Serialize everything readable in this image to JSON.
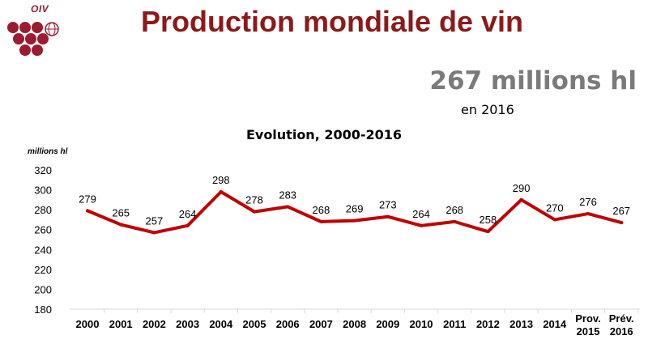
{
  "header": {
    "logo_text": "OIV",
    "title": "Production mondiale de vin"
  },
  "headline": {
    "value": "267 millions hl",
    "subtitle": "en 2016"
  },
  "colors": {
    "title": "#8b1a1a",
    "line": "#c00000",
    "logo": "#9b1b30",
    "axis": "#d9d9d9",
    "headline": "#7a7a7a"
  },
  "chart_data": {
    "type": "line",
    "title": "Evolution, 2000-2016",
    "ylabel": "millions hl",
    "xlabel": "",
    "ylim": [
      180,
      320
    ],
    "yticks": [
      180,
      200,
      220,
      240,
      260,
      280,
      300,
      320
    ],
    "grid": false,
    "categories": [
      [
        "2000"
      ],
      [
        "2001"
      ],
      [
        "2002"
      ],
      [
        "2003"
      ],
      [
        "2004"
      ],
      [
        "2005"
      ],
      [
        "2006"
      ],
      [
        "2007"
      ],
      [
        "2008"
      ],
      [
        "2009"
      ],
      [
        "2010"
      ],
      [
        "2011"
      ],
      [
        "2012"
      ],
      [
        "2013"
      ],
      [
        "2014"
      ],
      [
        "Prov.",
        "2015"
      ],
      [
        "Prév.",
        "2016"
      ]
    ],
    "series": [
      {
        "values": [
          279,
          265,
          257,
          264,
          298,
          278,
          283,
          268,
          269,
          273,
          264,
          268,
          258,
          290,
          270,
          276,
          267
        ]
      }
    ]
  }
}
